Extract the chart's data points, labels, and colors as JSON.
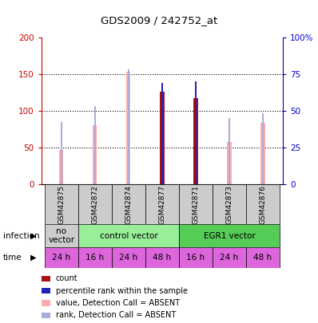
{
  "title": "GDS2009 / 242752_at",
  "samples": [
    "GSM42875",
    "GSM42872",
    "GSM42874",
    "GSM42877",
    "GSM42871",
    "GSM42873",
    "GSM42876"
  ],
  "value_absent": [
    46,
    80,
    153,
    0,
    0,
    57,
    83
  ],
  "rank_absent_val": [
    42,
    53,
    78,
    0,
    0,
    45,
    48
  ],
  "value_present": [
    0,
    0,
    0,
    126,
    117,
    0,
    0
  ],
  "rank_present_val": [
    0,
    0,
    0,
    69,
    70,
    0,
    0
  ],
  "ylim_left": [
    0,
    200
  ],
  "ylim_right": [
    0,
    100
  ],
  "yticks_left": [
    0,
    50,
    100,
    150,
    200
  ],
  "yticks_right": [
    0,
    25,
    50,
    75,
    100
  ],
  "ytick_labels_right": [
    "0",
    "25",
    "50",
    "75",
    "100%"
  ],
  "infection_groups": [
    {
      "label": "no\nvector",
      "start": 0,
      "end": 1,
      "color": "#cccccc"
    },
    {
      "label": "control vector",
      "start": 1,
      "end": 4,
      "color": "#99ee99"
    },
    {
      "label": "EGR1 vector",
      "start": 4,
      "end": 7,
      "color": "#55cc55"
    }
  ],
  "time_labels": [
    "24 h",
    "16 h",
    "24 h",
    "48 h",
    "16 h",
    "24 h",
    "48 h"
  ],
  "time_color": "#dd66dd",
  "bar_width": 0.12,
  "rank_bar_width": 0.06,
  "color_value_absent": "#ffaaaa",
  "color_rank_absent": "#aaaadd",
  "color_value_present": "#aa1111",
  "color_rank_present": "#2222bb",
  "label_color_left": "#cc0000",
  "label_color_right": "#0000cc",
  "legend_items": [
    {
      "label": "count",
      "color": "#aa1111"
    },
    {
      "label": "percentile rank within the sample",
      "color": "#2222bb"
    },
    {
      "label": "value, Detection Call = ABSENT",
      "color": "#ffaaaa"
    },
    {
      "label": "rank, Detection Call = ABSENT",
      "color": "#aaaadd"
    }
  ]
}
